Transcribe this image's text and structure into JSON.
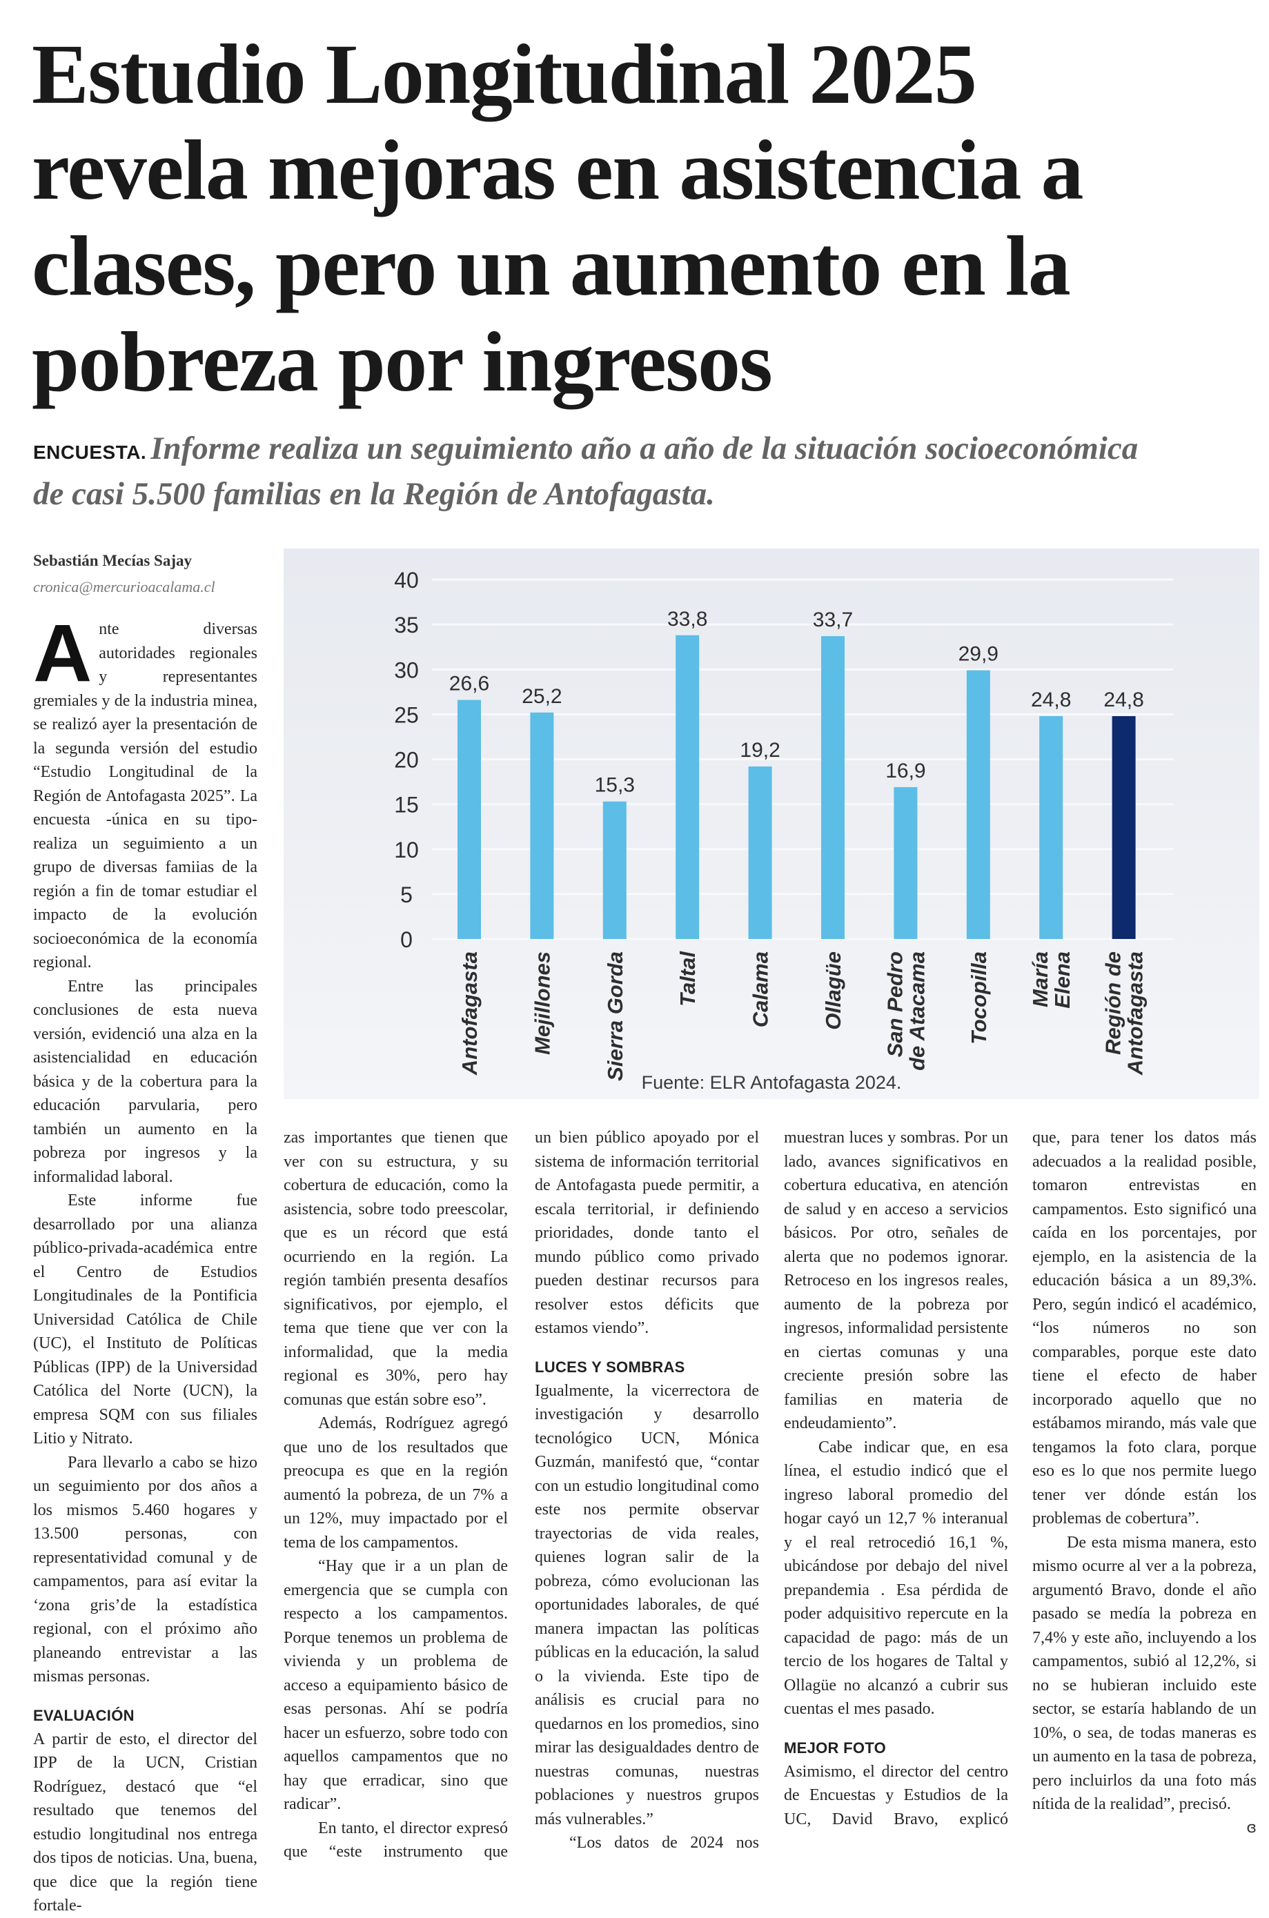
{
  "headline": {
    "lines": [
      "Estudio Longitudinal 2025",
      "revela mejoras en asistencia a",
      "clases, pero un aumento en la",
      "pobreza por ingresos"
    ]
  },
  "subhead": {
    "kicker": "ENCUESTA.",
    "lines": [
      "Informe realiza un seguimiento año a año de la situación socioeconómica",
      "de casi 5.500 familias en la Región de Antofagasta."
    ]
  },
  "byline": {
    "author": "Sebastián Mecías Sajay",
    "email": "cronica@mercurioacalama.cl"
  },
  "article": {
    "dropcap": "A",
    "col1": {
      "p1": "nte diversas autoridades regionales y representantes gremiales y de la industria minea, se realizó ayer la presentación de la segunda versión del estudio “Estudio Longitudinal de la Región de Antofagasta 2025”. La encuesta -única en su tipo- realiza un seguimiento a un grupo de diversas famiias de la región a fin de tomar estudiar el impacto de la evolución socioeconómica de la economía regional.",
      "p2": "Entre las principales conclusiones de esta nueva versión, evidenció una alza en la asistencialidad en educación básica y de la cobertura para la educación parvularia, pero también un aumento en la pobreza por ingresos y la informalidad laboral.",
      "p3": "Este informe fue desarrollado por una alianza público-privada-académica entre el Centro de Estudios Longitudinales de la Pontificia Universidad Católica de Chile (UC), el Instituto de Políticas Públicas (IPP) de la Universidad Católica del Norte (UCN), la empresa SQM con sus filiales Litio y Nitrato.",
      "p4": "Para llevarlo a cabo se hizo un seguimiento por dos años a los mismos 5.460 hogares y 13.500 personas, con representatividad comunal y de campamentos, para así evitar la ‘zona gris’de la estadística regional, con el próximo año planeando entrevistar a las mismas personas.",
      "h1": "EVALUACIÓN",
      "p5": "A partir de esto, el director del IPP de la UCN, Cristian Rodríguez, destacó que “el resultado que tenemos del estudio longitudinal nos entrega dos tipos de noticias. Una, buena, que dice que la región tiene fortale-"
    },
    "col2": {
      "p1": "zas importantes que tienen que ver con su estructura, y su cobertura de educación, como la asistencia, sobre todo preescolar, que es un récord que está ocurriendo en la región. La región también presenta desafíos significativos, por ejemplo, el tema que tiene que ver con la informalidad, que la media regional es 30%, pero hay comunas que están sobre eso”.",
      "p2": "Además, Rodríguez agregó que uno de los resultados que preocupa es que en la región aumentó la pobreza, de un 7% a un 12%, muy impactado por el tema de los campamentos.",
      "p3": "“Hay que ir a un plan de emergencia que se cumpla con respecto a los campamentos. Porque tenemos un problema de vivienda y un problema de acceso a equipamiento básico de esas personas. Ahí se podría hacer un esfuerzo, sobre todo con aquellos campamentos que no hay que erradicar, sino que radicar”.",
      "p4": "En tanto, el director expresó que “este instrumento que"
    },
    "col3": {
      "p1": "un bien público apoyado por el sistema de información territorial de Antofagasta puede permitir, a escala territorial, ir definiendo prioridades, donde tanto el mundo público como privado pueden destinar recursos para resolver estos déficits que estamos viendo”.",
      "h1": "LUCES Y SOMBRAS",
      "p2": "Igualmente, la vicerrectora de investigación y desarrollo tecnológico UCN, Mónica Guzmán, manifestó que, “contar con un estudio longitudinal como este nos permite observar trayectorias de vida reales, quienes logran salir de la pobreza, cómo evolucionan las oportunidades laborales, de qué manera impactan las políticas públicas en la educación, la salud o la vivienda. Este tipo de análisis es crucial para no quedarnos en los promedios, sino mirar las desigualdades dentro de nuestras comunas, nuestras poblaciones y nuestros grupos más vulnerables.”",
      "p3": "“Los datos de 2024 nos"
    },
    "col4": {
      "p1": "muestran luces y sombras. Por un lado, avances significativos en cobertura educativa, en atención de salud y en acceso a servicios básicos. Por otro, señales de alerta que no podemos ignorar. Retroceso en los ingresos reales, aumento de la pobreza por ingresos, informalidad persistente en ciertas comunas y una creciente presión sobre las familias en materia de endeudamiento”.",
      "p2": "Cabe indicar que, en esa línea, el estudio indicó que el ingreso laboral promedio del hogar cayó un 12,7 % interanual y el real retrocedió 16,1 %, ubicándose por debajo del nivel prepandemia . Esa pérdida de poder adquisitivo repercute en la capacidad de pago: más de un tercio de los hogares de Taltal y Ollagüe no alcanzó a cubrir sus cuentas el mes pasado.",
      "h1": "MEJOR FOTO",
      "p3": "Asimismo, el director del centro de Encuestas y Estudios de la UC, David Bravo, explicó"
    },
    "col5": {
      "p1": "que, para tener los datos más adecuados a la realidad posible, tomaron entrevistas en campamentos. Esto significó una caída en los porcentajes, por ejemplo, en la asistencia de la educación básica a un 89,3%. Pero, según indicó el académico, “los números no son comparables, porque este dato tiene el efecto de haber incorporado aquello que no estábamos mirando, más vale que tengamos la foto clara, porque eso es lo que nos permite luego tener ver dónde están los problemas de cobertura”.",
      "p2": "De esta misma manera, esto mismo ocurre al ver a la pobreza, argumentó Bravo, donde el año pasado se medía la pobreza en 7,4% y este año, incluyendo a los campamentos, subió al 12,2%, si no se hubieran incluido este sector, se estaría hablando de un 10%, o sea, de todas maneras es un aumento en la tasa de pobreza, pero incluirlos da una foto más nítida de la realidad”, precisó.",
      "end_mark_icon": "end-of-article-ornament"
    }
  },
  "chart_data": {
    "type": "bar",
    "categories": [
      "Antofagasta",
      "Mejillones",
      "Sierra Gorda",
      "Taltal",
      "Calama",
      "Ollagüe",
      "San Pedro de Atacama",
      "Tocopilla",
      "María Elena",
      "Región de Antofagasta"
    ],
    "category_label_lines": [
      [
        "Antofagasta"
      ],
      [
        "Mejillones"
      ],
      [
        "Sierra Gorda"
      ],
      [
        "Taltal"
      ],
      [
        "Calama"
      ],
      [
        "Ollagüe"
      ],
      [
        "San Pedro",
        "de Atacama"
      ],
      [
        "Tocopilla"
      ],
      [
        "María",
        "Elena"
      ],
      [
        "Región de",
        "Antofagasta"
      ]
    ],
    "values": [
      26.6,
      25.2,
      15.3,
      33.8,
      19.2,
      33.7,
      16.9,
      29.9,
      24.8,
      24.8
    ],
    "value_labels": [
      "26,6",
      "25,2",
      "15,3",
      "33,8",
      "19,2",
      "33,7",
      "16,9",
      "29,9",
      "24,8",
      "24,8"
    ],
    "yticks": [
      0,
      5,
      10,
      15,
      20,
      25,
      30,
      35,
      40
    ],
    "ylim": [
      0,
      40
    ],
    "grid": true,
    "title": "",
    "xlabel": "",
    "ylabel": "",
    "source": "Fuente: ELR Antofagasta 2024.",
    "colors": {
      "bar": "#5cbde6",
      "highlight": "#0e2a6e",
      "text": "#2e2e2e"
    },
    "highlight_index": 9
  }
}
